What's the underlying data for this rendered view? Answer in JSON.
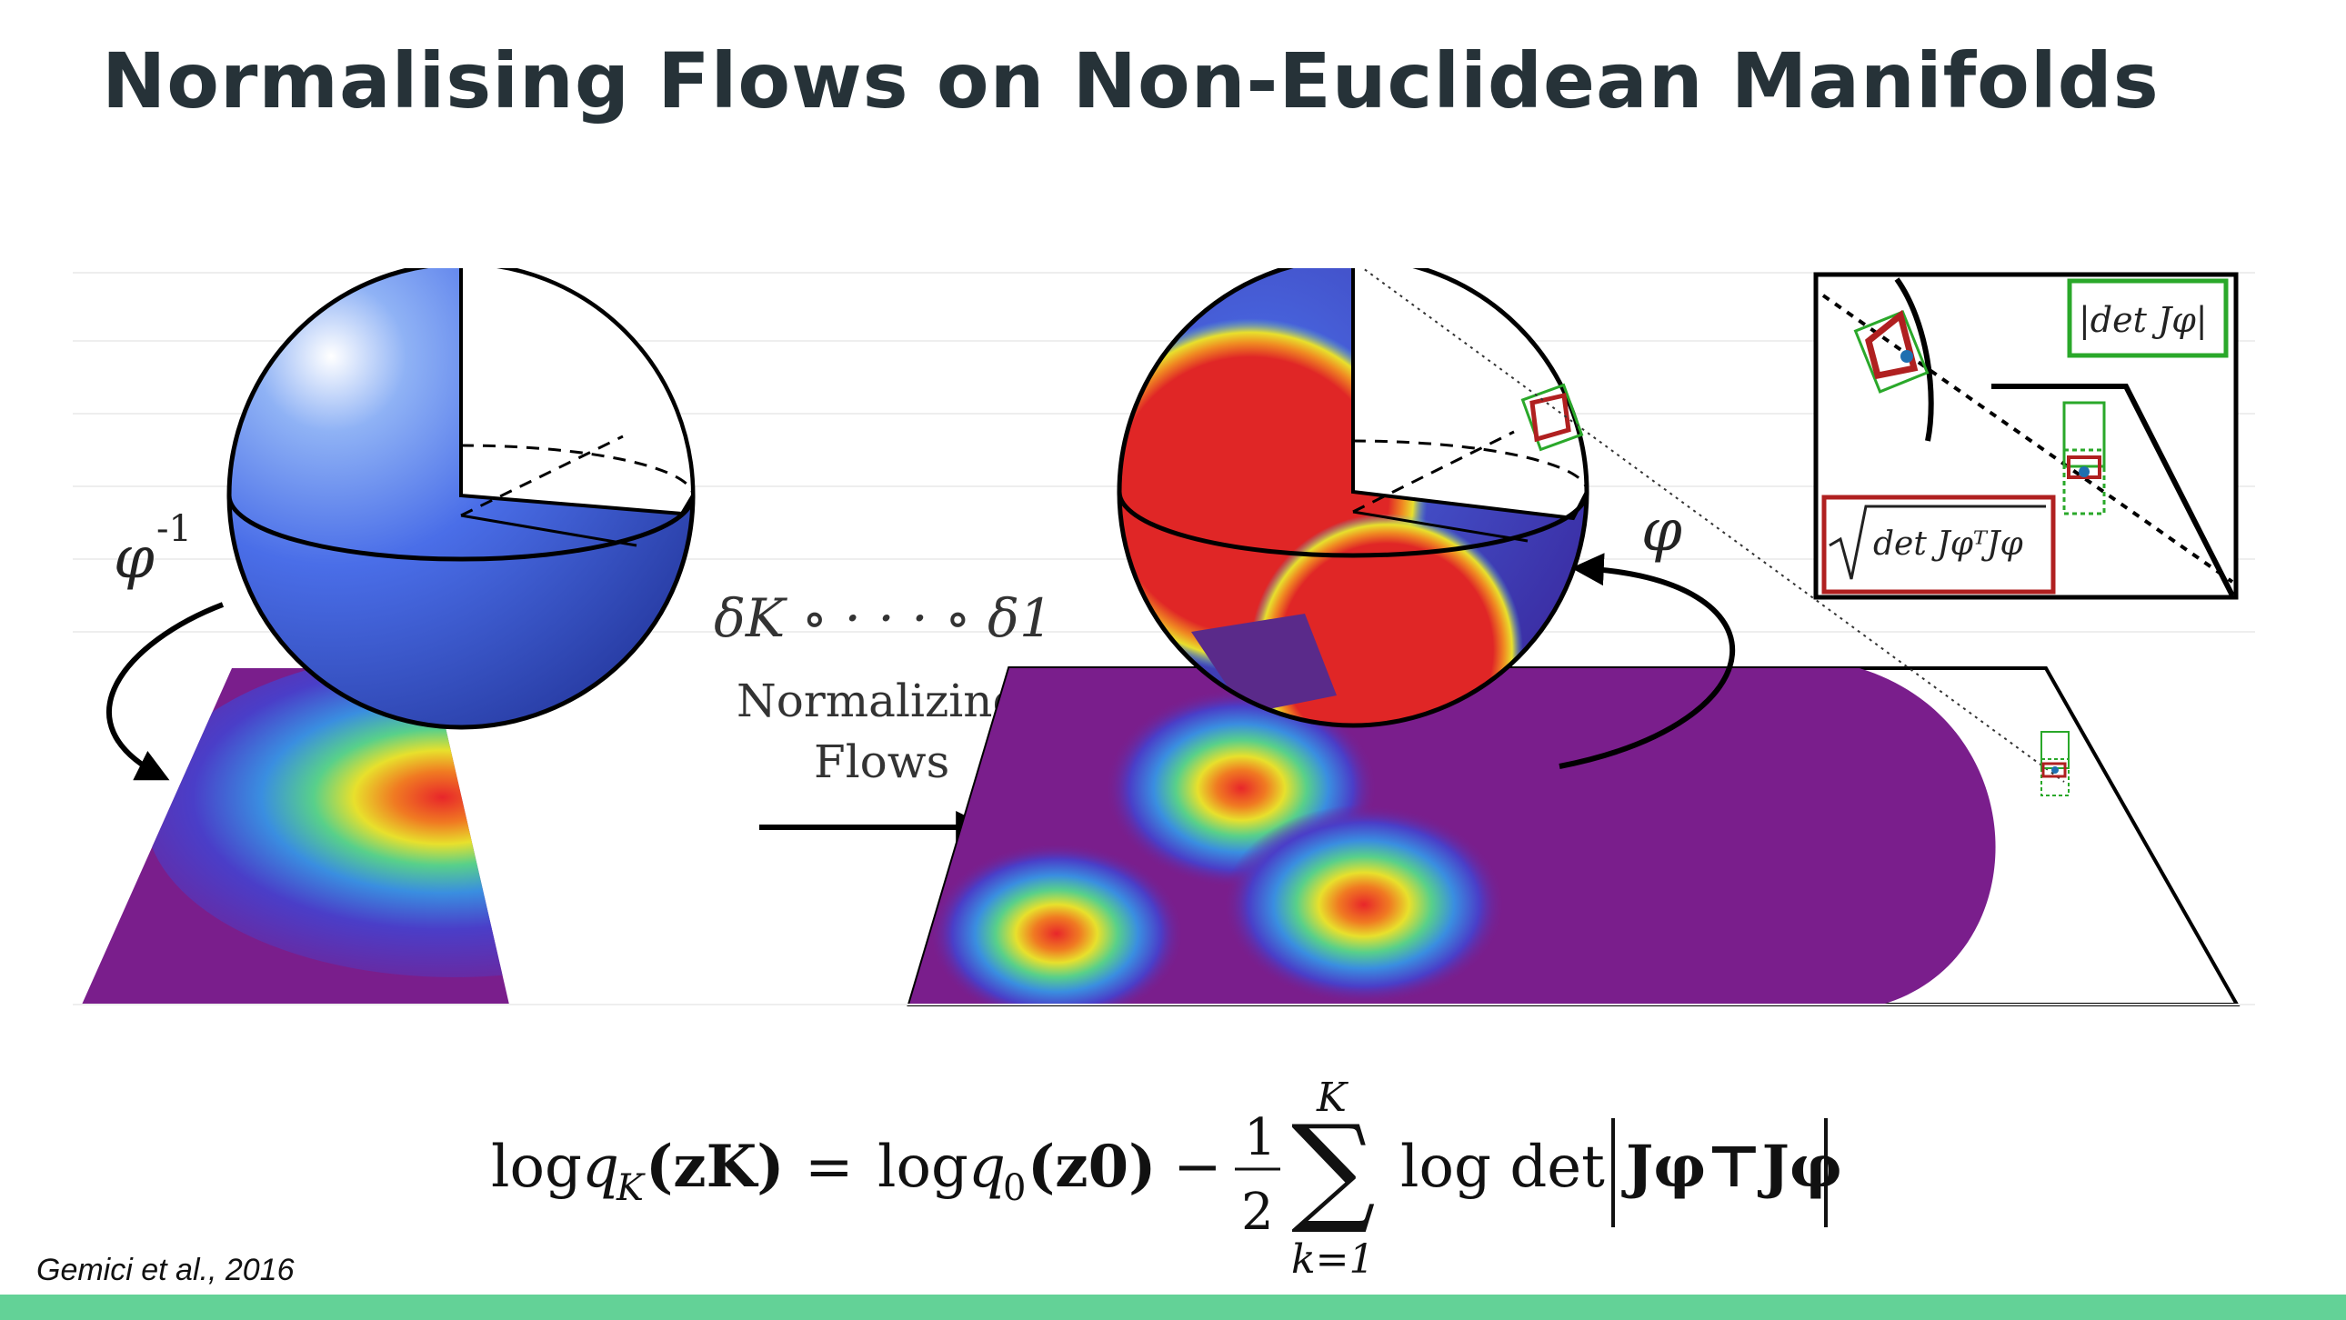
{
  "slide": {
    "title": "Normalising Flows on Non-Euclidean Manifolds",
    "citation": "Gemici et al., 2016",
    "footer_color": "#63d297"
  },
  "figure": {
    "inverse_map_label": "φ",
    "inverse_map_exponent": "-1",
    "forward_map_label": "φ",
    "composition_label": "δK ∘ · · · ∘ δ1",
    "flow_label_line1": "Normalizing",
    "flow_label_line2": "Flows",
    "inset": {
      "abs_det_label": "|det Jφ|",
      "sqrt_det_label": "det JφᵀJφ"
    },
    "colors": {
      "sphere_blue": "#3d5ee6",
      "density_purple": "#7a1e8c",
      "density_red": "#e8262a",
      "inset_green": "#2aa82a",
      "inset_red": "#b02020"
    }
  },
  "equation": {
    "lhs_log": "log",
    "lhs_q": "q",
    "lhs_sub": "K",
    "lhs_arg": "(zK)",
    "eq": "=",
    "rhs_log": "log",
    "rhs_q": "q",
    "rhs_sub": "0",
    "rhs_arg": "(z0)",
    "minus": "−",
    "frac_num": "1",
    "frac_den": "2",
    "sum_upper": "K",
    "sum_lower": "k=1",
    "log_det": "log det",
    "jacobian": "Jφ⊤Jφ"
  }
}
